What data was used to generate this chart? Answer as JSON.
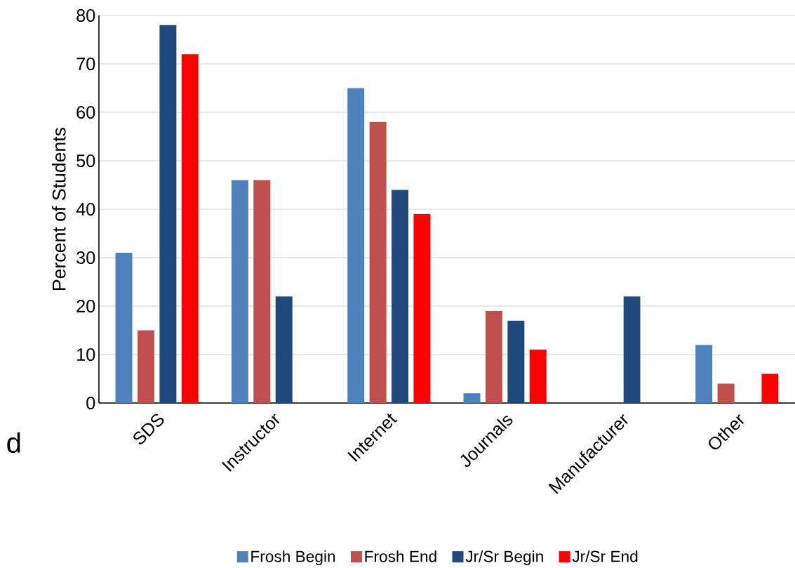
{
  "chart_data": {
    "type": "bar",
    "ylabel": "Percent of Students",
    "categories": [
      "SDS",
      "Instructor",
      "Internet",
      "Journals",
      "Manufacturer",
      "Other"
    ],
    "series": [
      {
        "name": "Frosh Begin",
        "color": "#4f81bd",
        "values": [
          31,
          46,
          65,
          2,
          null,
          12
        ]
      },
      {
        "name": "Frosh End",
        "color": "#c0504d",
        "values": [
          15,
          46,
          58,
          19,
          null,
          4
        ]
      },
      {
        "name": "Jr/Sr Begin",
        "color": "#1f497d",
        "values": [
          78,
          22,
          44,
          17,
          22,
          null
        ]
      },
      {
        "name": "Jr/Sr End",
        "color": "#ff0000",
        "values": [
          72,
          null,
          39,
          11,
          null,
          6
        ]
      }
    ],
    "ylim": [
      0,
      80
    ],
    "yticks": [
      0,
      10,
      20,
      30,
      40,
      50,
      60,
      70,
      80
    ],
    "grid": "y",
    "legend": "bottom",
    "annotations": [
      "d"
    ]
  }
}
